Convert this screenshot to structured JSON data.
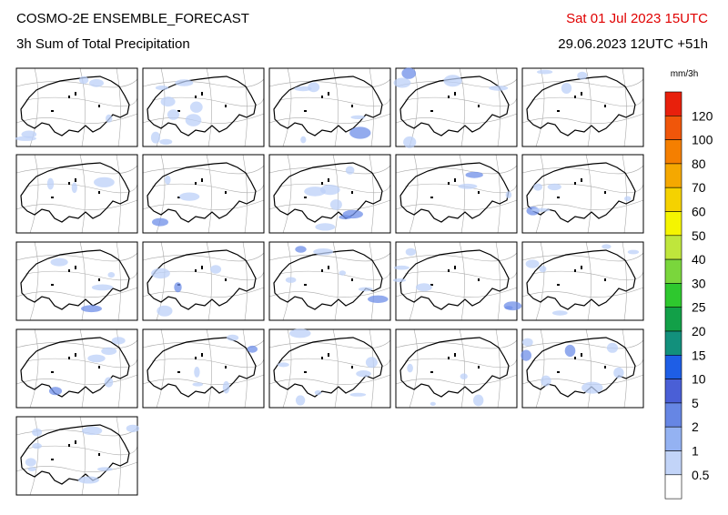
{
  "header": {
    "title": "COSMO-2E ENSEMBLE_FORECAST",
    "subtitle": "3h Sum of Total Precipitation",
    "valid_time": "Sat 01 Jul 2023 15UTC",
    "run": "29.06.2023 12UTC +51h"
  },
  "colorbar": {
    "unit": "mm/3h",
    "labels": [
      "120",
      "100",
      "80",
      "70",
      "60",
      "50",
      "40",
      "30",
      "25",
      "20",
      "15",
      "10",
      "5",
      "2",
      "1",
      "0.5"
    ]
  }
}
